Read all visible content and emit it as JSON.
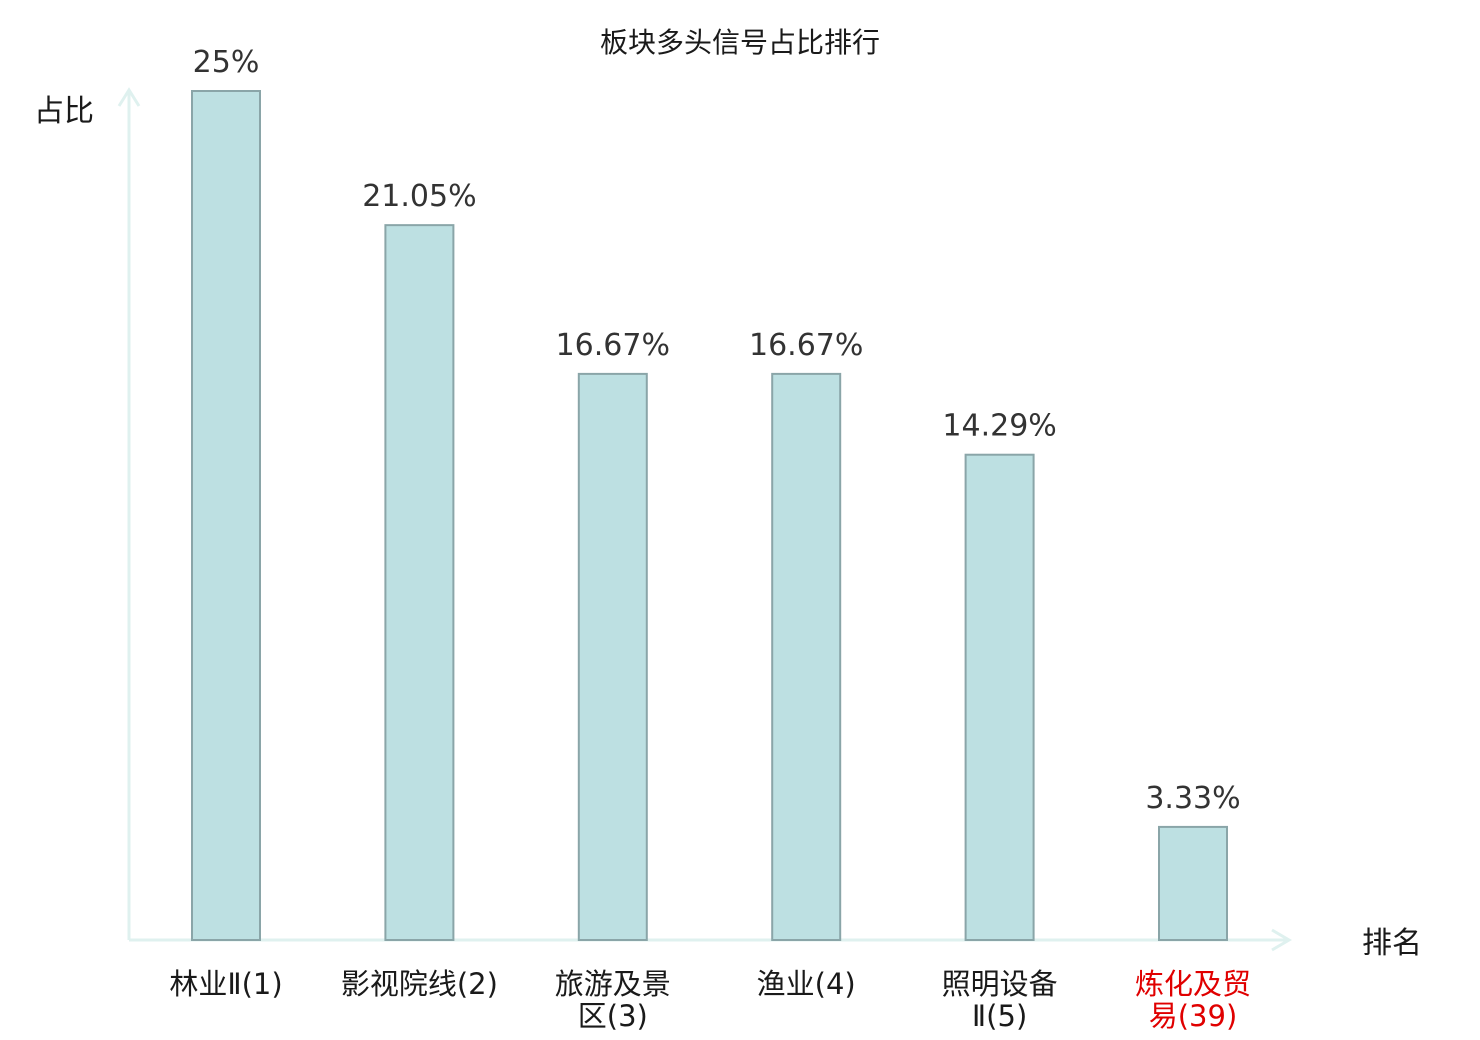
{
  "chart_data": {
    "type": "bar",
    "title": "板块多头信号占比排行",
    "ylabel": "占比",
    "xlabel": "排名",
    "ylim": [
      0,
      25
    ],
    "grid": false,
    "categories": [
      {
        "lines": [
          "林业Ⅱ(1)"
        ],
        "highlight": false
      },
      {
        "lines": [
          "影视院线(2)"
        ],
        "highlight": false
      },
      {
        "lines": [
          "旅游及景",
          "区(3)"
        ],
        "highlight": false
      },
      {
        "lines": [
          "渔业(4)"
        ],
        "highlight": false
      },
      {
        "lines": [
          "照明设备",
          "Ⅱ(5)"
        ],
        "highlight": false
      },
      {
        "lines": [
          "炼化及贸",
          "易(39)"
        ],
        "highlight": true
      }
    ],
    "values": [
      25,
      21.05,
      16.67,
      16.67,
      14.29,
      3.33
    ],
    "value_labels": [
      "25%",
      "21.05%",
      "16.67%",
      "16.67%",
      "14.29%",
      "3.33%"
    ],
    "colors": {
      "bar_fill": "#bde0e2",
      "bar_stroke": "#8aa5a8",
      "axis": "#dff1ef",
      "highlight": "#e00000"
    }
  }
}
